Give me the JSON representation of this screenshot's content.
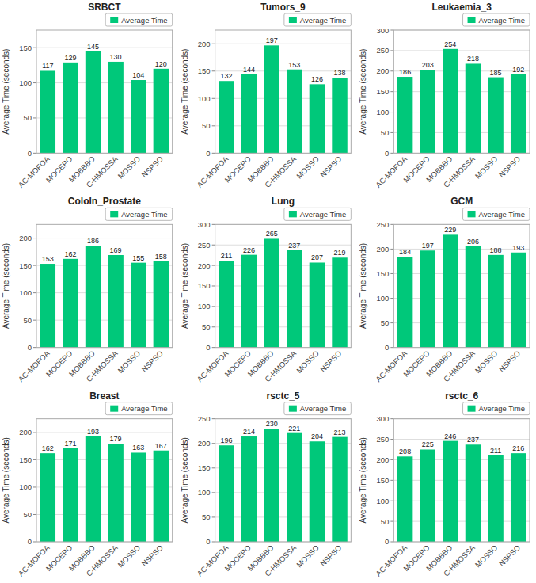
{
  "chart_data": [
    {
      "type": "bar",
      "title": "SRBCT",
      "ylabel": "Average Time (seconds)",
      "categories": [
        "AC-MOFOA",
        "MOCEPO",
        "MOBBBO",
        "C-HMOSSA",
        "MOSSO",
        "NSPSO"
      ],
      "series": [
        {
          "name": "Average Time",
          "color": "#00C87A",
          "values": [
            117,
            129,
            145,
            130,
            104,
            120
          ]
        }
      ],
      "ylim": [
        0,
        175
      ],
      "yticks": [
        0,
        50,
        100,
        150
      ],
      "grid": true,
      "data_labels": true,
      "legend": "upper right"
    },
    {
      "type": "bar",
      "title": "Tumors_9",
      "ylabel": "Average Time (seconds)",
      "categories": [
        "AC-MOFOA",
        "MOCEPO",
        "MOBBBO",
        "C-HMOSSA",
        "MOSSO",
        "NSPSO"
      ],
      "series": [
        {
          "name": "Average Time",
          "color": "#00C87A",
          "values": [
            132,
            144,
            197,
            153,
            126,
            138
          ]
        }
      ],
      "ylim": [
        0,
        225
      ],
      "yticks": [
        0,
        50,
        100,
        150,
        200
      ],
      "grid": true,
      "data_labels": true,
      "legend": "upper right"
    },
    {
      "type": "bar",
      "title": "Leukaemia_3",
      "ylabel": "Average Time (seconds)",
      "categories": [
        "AC-MOFOA",
        "MOCEPO",
        "MOBBBO",
        "C-HMOSSA",
        "MOSSO",
        "NSPSO"
      ],
      "series": [
        {
          "name": "Average Time",
          "color": "#00C87A",
          "values": [
            186,
            203,
            254,
            218,
            185,
            192
          ]
        }
      ],
      "ylim": [
        0,
        300
      ],
      "yticks": [
        0,
        50,
        100,
        150,
        200,
        250,
        300
      ],
      "grid": true,
      "data_labels": true,
      "legend": "upper right"
    },
    {
      "type": "bar",
      "title": "Cololn_Prostate",
      "ylabel": "Average Time (seconds)",
      "categories": [
        "AC-MOFOA",
        "MOCEPO",
        "MOBBBO",
        "C-HMOSSA",
        "MOSSO",
        "NSPSO"
      ],
      "series": [
        {
          "name": "Average Time",
          "color": "#00C87A",
          "values": [
            153,
            162,
            186,
            169,
            155,
            158
          ]
        }
      ],
      "ylim": [
        0,
        225
      ],
      "yticks": [
        0,
        50,
        100,
        150,
        200
      ],
      "grid": true,
      "data_labels": true,
      "legend": "upper right"
    },
    {
      "type": "bar",
      "title": "Lung",
      "ylabel": "Average Time (seconds)",
      "categories": [
        "AC-MOFOA",
        "MOCEPO",
        "MOBBBO",
        "C-HMOSSA",
        "MOSSO",
        "NSPSO"
      ],
      "series": [
        {
          "name": "Average Time",
          "color": "#00C87A",
          "values": [
            211,
            226,
            265,
            237,
            207,
            219
          ]
        }
      ],
      "ylim": [
        0,
        300
      ],
      "yticks": [
        0,
        50,
        100,
        150,
        200,
        250,
        300
      ],
      "grid": true,
      "data_labels": true,
      "legend": "upper right"
    },
    {
      "type": "bar",
      "title": "GCM",
      "ylabel": "Average Time (seconds)",
      "categories": [
        "AC-MOFOA",
        "MOCEPO",
        "MOBBBO",
        "C-HMOSSA",
        "MOSSO",
        "NSPSO"
      ],
      "series": [
        {
          "name": "Average Time",
          "color": "#00C87A",
          "values": [
            184,
            197,
            229,
            206,
            188,
            193
          ]
        }
      ],
      "ylim": [
        0,
        250
      ],
      "yticks": [
        0,
        50,
        100,
        150,
        200,
        250
      ],
      "grid": true,
      "data_labels": true,
      "legend": "upper right"
    },
    {
      "type": "bar",
      "title": "Breast",
      "ylabel": "Average Time (seconds)",
      "categories": [
        "AC-MOFOA",
        "MOCEPO",
        "MOBBBO",
        "C-HMOSSA",
        "MOSSO",
        "NSPSO"
      ],
      "series": [
        {
          "name": "Average Time",
          "color": "#00C87A",
          "values": [
            162,
            171,
            193,
            179,
            163,
            167
          ]
        }
      ],
      "ylim": [
        0,
        225
      ],
      "yticks": [
        0,
        50,
        100,
        150,
        200
      ],
      "grid": true,
      "data_labels": true,
      "legend": "upper right"
    },
    {
      "type": "bar",
      "title": "rsctc_5",
      "ylabel": "Average Time (seconds)",
      "categories": [
        "AC-MOFOA",
        "MOCEPO",
        "MOBBBO",
        "C-HMOSSA",
        "MOSSO",
        "NSPSO"
      ],
      "series": [
        {
          "name": "Average Time",
          "color": "#00C87A",
          "values": [
            196,
            214,
            230,
            221,
            204,
            213
          ]
        }
      ],
      "ylim": [
        0,
        250
      ],
      "yticks": [
        0,
        50,
        100,
        150,
        200,
        250
      ],
      "grid": true,
      "data_labels": true,
      "legend": "upper right"
    },
    {
      "type": "bar",
      "title": "rsctc_6",
      "ylabel": "Average Time (seconds)",
      "categories": [
        "AC-MOFOA",
        "MOCEPO",
        "MOBBBO",
        "C-HMOSSA",
        "MOSSO",
        "NSPSO"
      ],
      "series": [
        {
          "name": "Average Time",
          "color": "#00C87A",
          "values": [
            208,
            225,
            246,
            237,
            211,
            216
          ]
        }
      ],
      "ylim": [
        0,
        300
      ],
      "yticks": [
        0,
        50,
        100,
        150,
        200,
        250,
        300
      ],
      "grid": true,
      "data_labels": true,
      "legend": "upper right"
    }
  ]
}
